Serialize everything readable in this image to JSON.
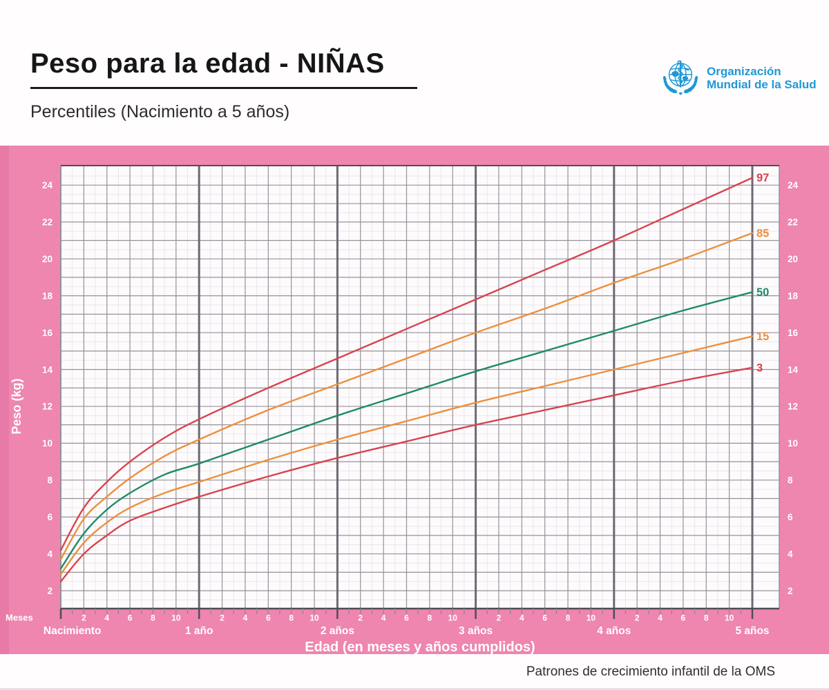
{
  "header": {
    "title": "Peso para la edad - NIÑAS",
    "subtitle": "Percentiles (Nacimiento a 5 años)",
    "logo": {
      "line1": "Organización",
      "line2": "Mundial de la Salud",
      "color": "#1e98d5"
    }
  },
  "band_colors": {
    "background": "#ee86af",
    "left_edge": "#e77aa6"
  },
  "chart_data": {
    "type": "line",
    "title": "Peso para la edad - NIÑAS",
    "subtitle": "Percentiles (Nacimiento a 5 años)",
    "xlabel": "Edad (en meses y años cumplidos)",
    "ylabel": "Peso (kg)",
    "x_axis_unit_label": "Meses",
    "x_year_labels": [
      "Nacimiento",
      "1 año",
      "2 años",
      "3 años",
      "4 años",
      "5 años"
    ],
    "x_month_tick_labels": [
      "2",
      "4",
      "6",
      "8",
      "10"
    ],
    "x_range_months": [
      0,
      60
    ],
    "ylim": [
      1,
      25
    ],
    "y_ticks": [
      "2",
      "4",
      "6",
      "8",
      "10",
      "12",
      "14",
      "16",
      "18",
      "20",
      "22",
      "24"
    ],
    "grid": true,
    "legend_position": "right-inline-curve-labels",
    "x_sample_months": [
      0,
      2,
      4,
      6,
      9,
      12,
      18,
      24,
      30,
      36,
      42,
      48,
      54,
      60
    ],
    "series": [
      {
        "name": "97",
        "percentile": 97,
        "color": "#d8434e",
        "values": [
          4.2,
          6.5,
          7.9,
          9.0,
          10.3,
          11.3,
          13.0,
          14.6,
          16.2,
          17.8,
          19.4,
          21.0,
          22.7,
          24.4
        ]
      },
      {
        "name": "85",
        "percentile": 85,
        "color": "#ee8f3c",
        "values": [
          3.7,
          5.9,
          7.1,
          8.1,
          9.3,
          10.2,
          11.8,
          13.2,
          14.6,
          16.0,
          17.3,
          18.7,
          20.0,
          21.4
        ]
      },
      {
        "name": "50",
        "percentile": 50,
        "color": "#1f8a67",
        "values": [
          3.2,
          5.1,
          6.4,
          7.3,
          8.3,
          8.9,
          10.2,
          11.5,
          12.7,
          13.9,
          15.0,
          16.1,
          17.2,
          18.2
        ]
      },
      {
        "name": "15",
        "percentile": 15,
        "color": "#ee8f3c",
        "values": [
          2.9,
          4.6,
          5.7,
          6.5,
          7.3,
          7.9,
          9.1,
          10.2,
          11.2,
          12.2,
          13.1,
          14.0,
          14.9,
          15.8
        ]
      },
      {
        "name": "3",
        "percentile": 3,
        "color": "#d8434e",
        "values": [
          2.5,
          4.0,
          5.0,
          5.8,
          6.5,
          7.1,
          8.2,
          9.2,
          10.1,
          11.0,
          11.8,
          12.6,
          13.4,
          14.1
        ]
      }
    ],
    "grid_colors": {
      "minor": "#eae7ee",
      "major": "#969199",
      "year_line": "#6d6973",
      "border_dark": "#4f4c55",
      "tick": "#8d8893",
      "plot_background": "#fdfbfc",
      "label_text": "#ffffff"
    }
  },
  "footer": {
    "text": "Patrones de crecimiento infantil de la OMS"
  }
}
